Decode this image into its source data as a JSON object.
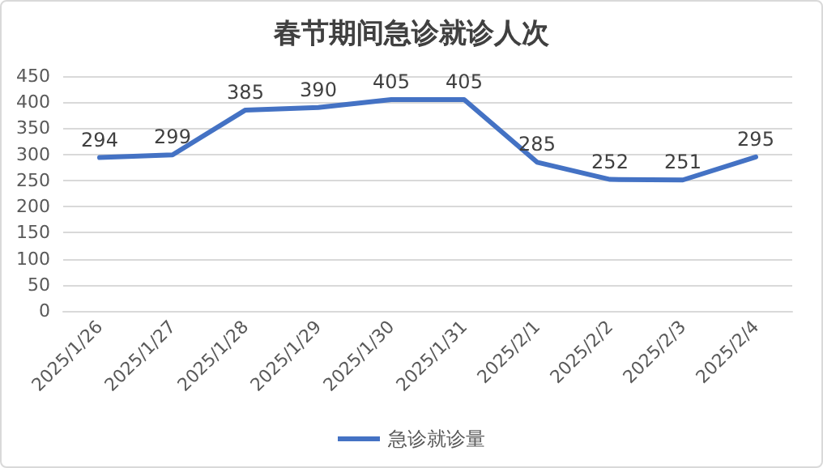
{
  "chart_data": {
    "type": "line",
    "title": "春节期间急诊就诊人次",
    "categories": [
      "2025/1/26",
      "2025/1/27",
      "2025/1/28",
      "2025/1/29",
      "2025/1/30",
      "2025/1/31",
      "2025/2/1",
      "2025/2/2",
      "2025/2/3",
      "2025/2/4"
    ],
    "series": [
      {
        "name": "急诊就诊量",
        "color": "#4472c4",
        "values": [
          294,
          299,
          385,
          390,
          405,
          405,
          285,
          252,
          251,
          295
        ]
      }
    ],
    "ylim": [
      0,
      450
    ],
    "yticks": [
      0,
      50,
      100,
      150,
      200,
      250,
      300,
      350,
      400,
      450
    ],
    "grid": "y",
    "legend": "bottom",
    "data_labels": true,
    "marker": "none",
    "line_style": "solid"
  }
}
